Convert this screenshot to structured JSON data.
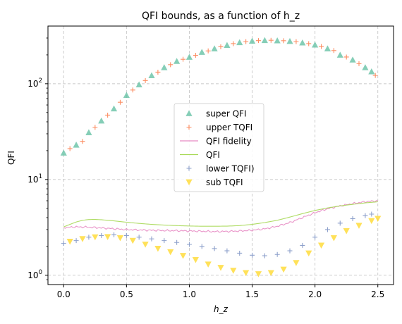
{
  "chart_data": {
    "type": "scatter",
    "title": "QFI bounds, as a function of h_z",
    "xlabel": "h_z",
    "ylabel": "QFI",
    "yscale": "log",
    "xlim": [
      -0.125,
      2.625
    ],
    "ylim": [
      0.8,
      400
    ],
    "grid": true,
    "legend_position": "center",
    "x_ticks": [
      {
        "value": 0.0,
        "label": "0.0"
      },
      {
        "value": 0.5,
        "label": "0.5"
      },
      {
        "value": 1.0,
        "label": "1.0"
      },
      {
        "value": 1.5,
        "label": "1.5"
      },
      {
        "value": 2.0,
        "label": "2.0"
      },
      {
        "value": 2.5,
        "label": "2.5"
      }
    ],
    "y_ticks": [
      {
        "value": 1,
        "base": "10",
        "exp": "0"
      },
      {
        "value": 10,
        "base": "10",
        "exp": "1"
      },
      {
        "value": 100,
        "base": "10",
        "exp": "2"
      }
    ],
    "series": [
      {
        "name": "super QFI",
        "kind": "marker",
        "marker": "triangle-up",
        "color": "#66c2a5",
        "points": [
          [
            0.0,
            19
          ],
          [
            0.1,
            23
          ],
          [
            0.2,
            31
          ],
          [
            0.3,
            41
          ],
          [
            0.4,
            55
          ],
          [
            0.5,
            76
          ],
          [
            0.6,
            98
          ],
          [
            0.7,
            122
          ],
          [
            0.8,
            148
          ],
          [
            0.9,
            172
          ],
          [
            1.0,
            190
          ],
          [
            1.1,
            214
          ],
          [
            1.2,
            233
          ],
          [
            1.3,
            253
          ],
          [
            1.4,
            270
          ],
          [
            1.5,
            280
          ],
          [
            1.6,
            284
          ],
          [
            1.7,
            282
          ],
          [
            1.8,
            278
          ],
          [
            1.9,
            268
          ],
          [
            2.0,
            255
          ],
          [
            2.1,
            233
          ],
          [
            2.2,
            200
          ],
          [
            2.3,
            178
          ],
          [
            2.4,
            148
          ],
          [
            2.45,
            134
          ]
        ]
      },
      {
        "name": "upper TQFI",
        "kind": "marker",
        "marker": "plus",
        "color": "#fc8d62",
        "points": [
          [
            0.05,
            21
          ],
          [
            0.15,
            25
          ],
          [
            0.25,
            35
          ],
          [
            0.35,
            47
          ],
          [
            0.45,
            64
          ],
          [
            0.55,
            86
          ],
          [
            0.65,
            108
          ],
          [
            0.75,
            132
          ],
          [
            0.85,
            158
          ],
          [
            0.95,
            180
          ],
          [
            1.05,
            198
          ],
          [
            1.15,
            220
          ],
          [
            1.25,
            243
          ],
          [
            1.35,
            262
          ],
          [
            1.45,
            275
          ],
          [
            1.55,
            282
          ],
          [
            1.65,
            284
          ],
          [
            1.75,
            281
          ],
          [
            1.85,
            275
          ],
          [
            1.95,
            262
          ],
          [
            2.05,
            245
          ],
          [
            2.15,
            222
          ],
          [
            2.25,
            190
          ],
          [
            2.35,
            162
          ],
          [
            2.48,
            122
          ]
        ]
      },
      {
        "name": "QFI fidelity",
        "kind": "line",
        "color": "#e78ac3",
        "points": [
          [
            0.0,
            3.15
          ],
          [
            0.1,
            3.2
          ],
          [
            0.2,
            3.18
          ],
          [
            0.3,
            3.12
          ],
          [
            0.4,
            3.06
          ],
          [
            0.5,
            3.0
          ],
          [
            0.6,
            2.97
          ],
          [
            0.7,
            2.95
          ],
          [
            0.8,
            2.93
          ],
          [
            0.9,
            2.92
          ],
          [
            1.0,
            2.9
          ],
          [
            1.1,
            2.88
          ],
          [
            1.2,
            2.86
          ],
          [
            1.3,
            2.87
          ],
          [
            1.4,
            2.9
          ],
          [
            1.5,
            2.95
          ],
          [
            1.6,
            3.05
          ],
          [
            1.7,
            3.25
          ],
          [
            1.8,
            3.55
          ],
          [
            1.9,
            4.0
          ],
          [
            2.0,
            4.5
          ],
          [
            2.1,
            4.95
          ],
          [
            2.2,
            5.3
          ],
          [
            2.3,
            5.6
          ],
          [
            2.4,
            5.85
          ],
          [
            2.5,
            6.0
          ]
        ]
      },
      {
        "name": "QFI",
        "kind": "line",
        "color": "#a6d854",
        "points": [
          [
            0.0,
            3.2
          ],
          [
            0.05,
            3.4
          ],
          [
            0.1,
            3.6
          ],
          [
            0.15,
            3.75
          ],
          [
            0.2,
            3.82
          ],
          [
            0.25,
            3.83
          ],
          [
            0.3,
            3.8
          ],
          [
            0.4,
            3.7
          ],
          [
            0.5,
            3.58
          ],
          [
            0.6,
            3.48
          ],
          [
            0.7,
            3.4
          ],
          [
            0.8,
            3.34
          ],
          [
            0.9,
            3.3
          ],
          [
            1.0,
            3.27
          ],
          [
            1.1,
            3.25
          ],
          [
            1.2,
            3.25
          ],
          [
            1.3,
            3.26
          ],
          [
            1.4,
            3.3
          ],
          [
            1.5,
            3.4
          ],
          [
            1.6,
            3.55
          ],
          [
            1.7,
            3.75
          ],
          [
            1.8,
            4.05
          ],
          [
            1.9,
            4.4
          ],
          [
            2.0,
            4.75
          ],
          [
            2.1,
            5.05
          ],
          [
            2.2,
            5.3
          ],
          [
            2.3,
            5.5
          ],
          [
            2.4,
            5.7
          ],
          [
            2.5,
            5.85
          ]
        ]
      },
      {
        "name": "lower TQFI)",
        "kind": "marker",
        "marker": "plus",
        "color": "#8da0cb",
        "points": [
          [
            0.0,
            2.15
          ],
          [
            0.1,
            2.3
          ],
          [
            0.2,
            2.5
          ],
          [
            0.3,
            2.6
          ],
          [
            0.4,
            2.65
          ],
          [
            0.5,
            2.6
          ],
          [
            0.6,
            2.5
          ],
          [
            0.7,
            2.4
          ],
          [
            0.8,
            2.3
          ],
          [
            0.9,
            2.2
          ],
          [
            1.0,
            2.1
          ],
          [
            1.1,
            2.0
          ],
          [
            1.2,
            1.9
          ],
          [
            1.3,
            1.8
          ],
          [
            1.4,
            1.7
          ],
          [
            1.5,
            1.62
          ],
          [
            1.6,
            1.6
          ],
          [
            1.7,
            1.65
          ],
          [
            1.8,
            1.8
          ],
          [
            1.9,
            2.05
          ],
          [
            2.0,
            2.5
          ],
          [
            2.1,
            3.0
          ],
          [
            2.2,
            3.5
          ],
          [
            2.3,
            3.9
          ],
          [
            2.4,
            4.2
          ],
          [
            2.45,
            4.35
          ]
        ]
      },
      {
        "name": "sub TQFI",
        "kind": "marker",
        "marker": "triangle-down",
        "color": "#ffd92f",
        "points": [
          [
            0.05,
            2.25
          ],
          [
            0.15,
            2.4
          ],
          [
            0.25,
            2.5
          ],
          [
            0.35,
            2.52
          ],
          [
            0.45,
            2.45
          ],
          [
            0.55,
            2.3
          ],
          [
            0.65,
            2.1
          ],
          [
            0.75,
            1.9
          ],
          [
            0.85,
            1.75
          ],
          [
            0.95,
            1.6
          ],
          [
            1.05,
            1.45
          ],
          [
            1.15,
            1.3
          ],
          [
            1.25,
            1.2
          ],
          [
            1.35,
            1.12
          ],
          [
            1.45,
            1.06
          ],
          [
            1.55,
            1.03
          ],
          [
            1.65,
            1.06
          ],
          [
            1.75,
            1.15
          ],
          [
            1.85,
            1.35
          ],
          [
            1.95,
            1.7
          ],
          [
            2.05,
            2.05
          ],
          [
            2.15,
            2.45
          ],
          [
            2.25,
            2.9
          ],
          [
            2.35,
            3.3
          ],
          [
            2.45,
            3.7
          ],
          [
            2.5,
            3.9
          ]
        ]
      }
    ]
  }
}
